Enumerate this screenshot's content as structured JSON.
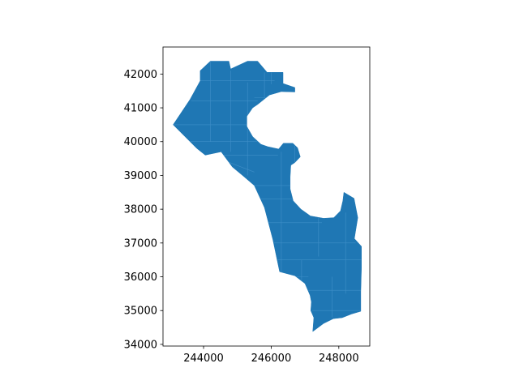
{
  "chart_data": {
    "type": "map",
    "title": "",
    "xlabel": "",
    "ylabel": "",
    "xlim": [
      242800,
      248900
    ],
    "ylim": [
      33950,
      42800
    ],
    "x_ticks": [
      {
        "value": 244000,
        "label": "244000"
      },
      {
        "value": 246000,
        "label": "246000"
      },
      {
        "value": 248000,
        "label": "248000"
      }
    ],
    "y_ticks": [
      {
        "value": 34000,
        "label": "34000"
      },
      {
        "value": 35000,
        "label": "35000"
      },
      {
        "value": 36000,
        "label": "36000"
      },
      {
        "value": 37000,
        "label": "37000"
      },
      {
        "value": 38000,
        "label": "38000"
      },
      {
        "value": 39000,
        "label": "39000"
      },
      {
        "value": 40000,
        "label": "40000"
      },
      {
        "value": 41000,
        "label": "41000"
      },
      {
        "value": 42000,
        "label": "42000"
      }
    ],
    "grid": false,
    "fill_color": "#1f77b4",
    "edge_color": "#3f8fc8",
    "outline": [
      [
        243900,
        42100
      ],
      [
        244200,
        42380
      ],
      [
        244750,
        42380
      ],
      [
        244800,
        42150
      ],
      [
        245300,
        42380
      ],
      [
        245600,
        42380
      ],
      [
        245880,
        42050
      ],
      [
        246350,
        42050
      ],
      [
        246350,
        41720
      ],
      [
        246700,
        41600
      ],
      [
        246700,
        41470
      ],
      [
        246300,
        41480
      ],
      [
        245950,
        41380
      ],
      [
        245600,
        41100
      ],
      [
        245450,
        41000
      ],
      [
        245280,
        40750
      ],
      [
        245280,
        40450
      ],
      [
        245450,
        40150
      ],
      [
        245700,
        39920
      ],
      [
        245900,
        39850
      ],
      [
        246220,
        39780
      ],
      [
        246360,
        39950
      ],
      [
        246640,
        39950
      ],
      [
        246780,
        39820
      ],
      [
        246860,
        39550
      ],
      [
        246700,
        39380
      ],
      [
        246580,
        39300
      ],
      [
        246560,
        38950
      ],
      [
        246560,
        38600
      ],
      [
        246650,
        38250
      ],
      [
        246880,
        38000
      ],
      [
        247160,
        37800
      ],
      [
        247550,
        37730
      ],
      [
        247850,
        37750
      ],
      [
        248050,
        37950
      ],
      [
        248120,
        38250
      ],
      [
        248150,
        38500
      ],
      [
        248450,
        38320
      ],
      [
        248560,
        37750
      ],
      [
        248460,
        37130
      ],
      [
        248670,
        36900
      ],
      [
        248670,
        36250
      ],
      [
        248650,
        35560
      ],
      [
        248650,
        34980
      ],
      [
        248380,
        34900
      ],
      [
        248100,
        34790
      ],
      [
        247840,
        34760
      ],
      [
        247550,
        34620
      ],
      [
        247230,
        34380
      ],
      [
        247260,
        34790
      ],
      [
        247170,
        35000
      ],
      [
        247190,
        35250
      ],
      [
        247150,
        35450
      ],
      [
        247000,
        35800
      ],
      [
        246700,
        36030
      ],
      [
        246250,
        36150
      ],
      [
        246050,
        37100
      ],
      [
        245800,
        38050
      ],
      [
        245500,
        38700
      ],
      [
        245150,
        39000
      ],
      [
        244850,
        39250
      ],
      [
        244520,
        39700
      ],
      [
        244050,
        39600
      ],
      [
        243800,
        39800
      ],
      [
        243100,
        40500
      ],
      [
        243600,
        41250
      ],
      [
        243900,
        41800
      ]
    ],
    "interior_boundaries": [
      [
        [
          243900,
          41800
        ],
        [
          246100,
          41800
        ]
      ],
      [
        [
          243630,
          41200
        ],
        [
          245600,
          41200
        ]
      ],
      [
        [
          243100,
          40500
        ],
        [
          245300,
          40500
        ]
      ],
      [
        [
          243600,
          40000
        ],
        [
          245700,
          40000
        ]
      ],
      [
        [
          244500,
          39600
        ],
        [
          246200,
          39600
        ]
      ],
      [
        [
          244200,
          39600
        ],
        [
          245500,
          39100
        ]
      ],
      [
        [
          245200,
          38700
        ],
        [
          246600,
          38700
        ]
      ],
      [
        [
          245700,
          38300
        ],
        [
          246700,
          38300
        ]
      ],
      [
        [
          245900,
          37600
        ],
        [
          247500,
          37600
        ]
      ],
      [
        [
          246000,
          37000
        ],
        [
          248500,
          37000
        ]
      ],
      [
        [
          246200,
          36500
        ],
        [
          248700,
          36500
        ]
      ],
      [
        [
          246300,
          36000
        ],
        [
          247100,
          36000
        ]
      ],
      [
        [
          247100,
          35600
        ],
        [
          248700,
          35600
        ]
      ],
      [
        [
          247200,
          35000
        ],
        [
          248700,
          35000
        ]
      ],
      [
        [
          244200,
          42380
        ],
        [
          244200,
          40000
        ]
      ],
      [
        [
          244800,
          42100
        ],
        [
          244800,
          39700
        ]
      ],
      [
        [
          245300,
          41750
        ],
        [
          245300,
          39000
        ]
      ],
      [
        [
          245800,
          42050
        ],
        [
          245800,
          39900
        ]
      ],
      [
        [
          246300,
          39700
        ],
        [
          246300,
          36100
        ]
      ],
      [
        [
          246900,
          36500
        ],
        [
          246900,
          35900
        ]
      ],
      [
        [
          247400,
          37800
        ],
        [
          247400,
          36600
        ]
      ],
      [
        [
          247800,
          36000
        ],
        [
          247800,
          34800
        ]
      ],
      [
        [
          248200,
          37900
        ],
        [
          248200,
          35500
        ]
      ],
      [
        [
          246700,
          39950
        ],
        [
          246700,
          38600
        ]
      ],
      [
        [
          245500,
          41300
        ],
        [
          245900,
          41300
        ]
      ],
      [
        [
          246000,
          41700
        ],
        [
          246000,
          42050
        ]
      ]
    ]
  }
}
